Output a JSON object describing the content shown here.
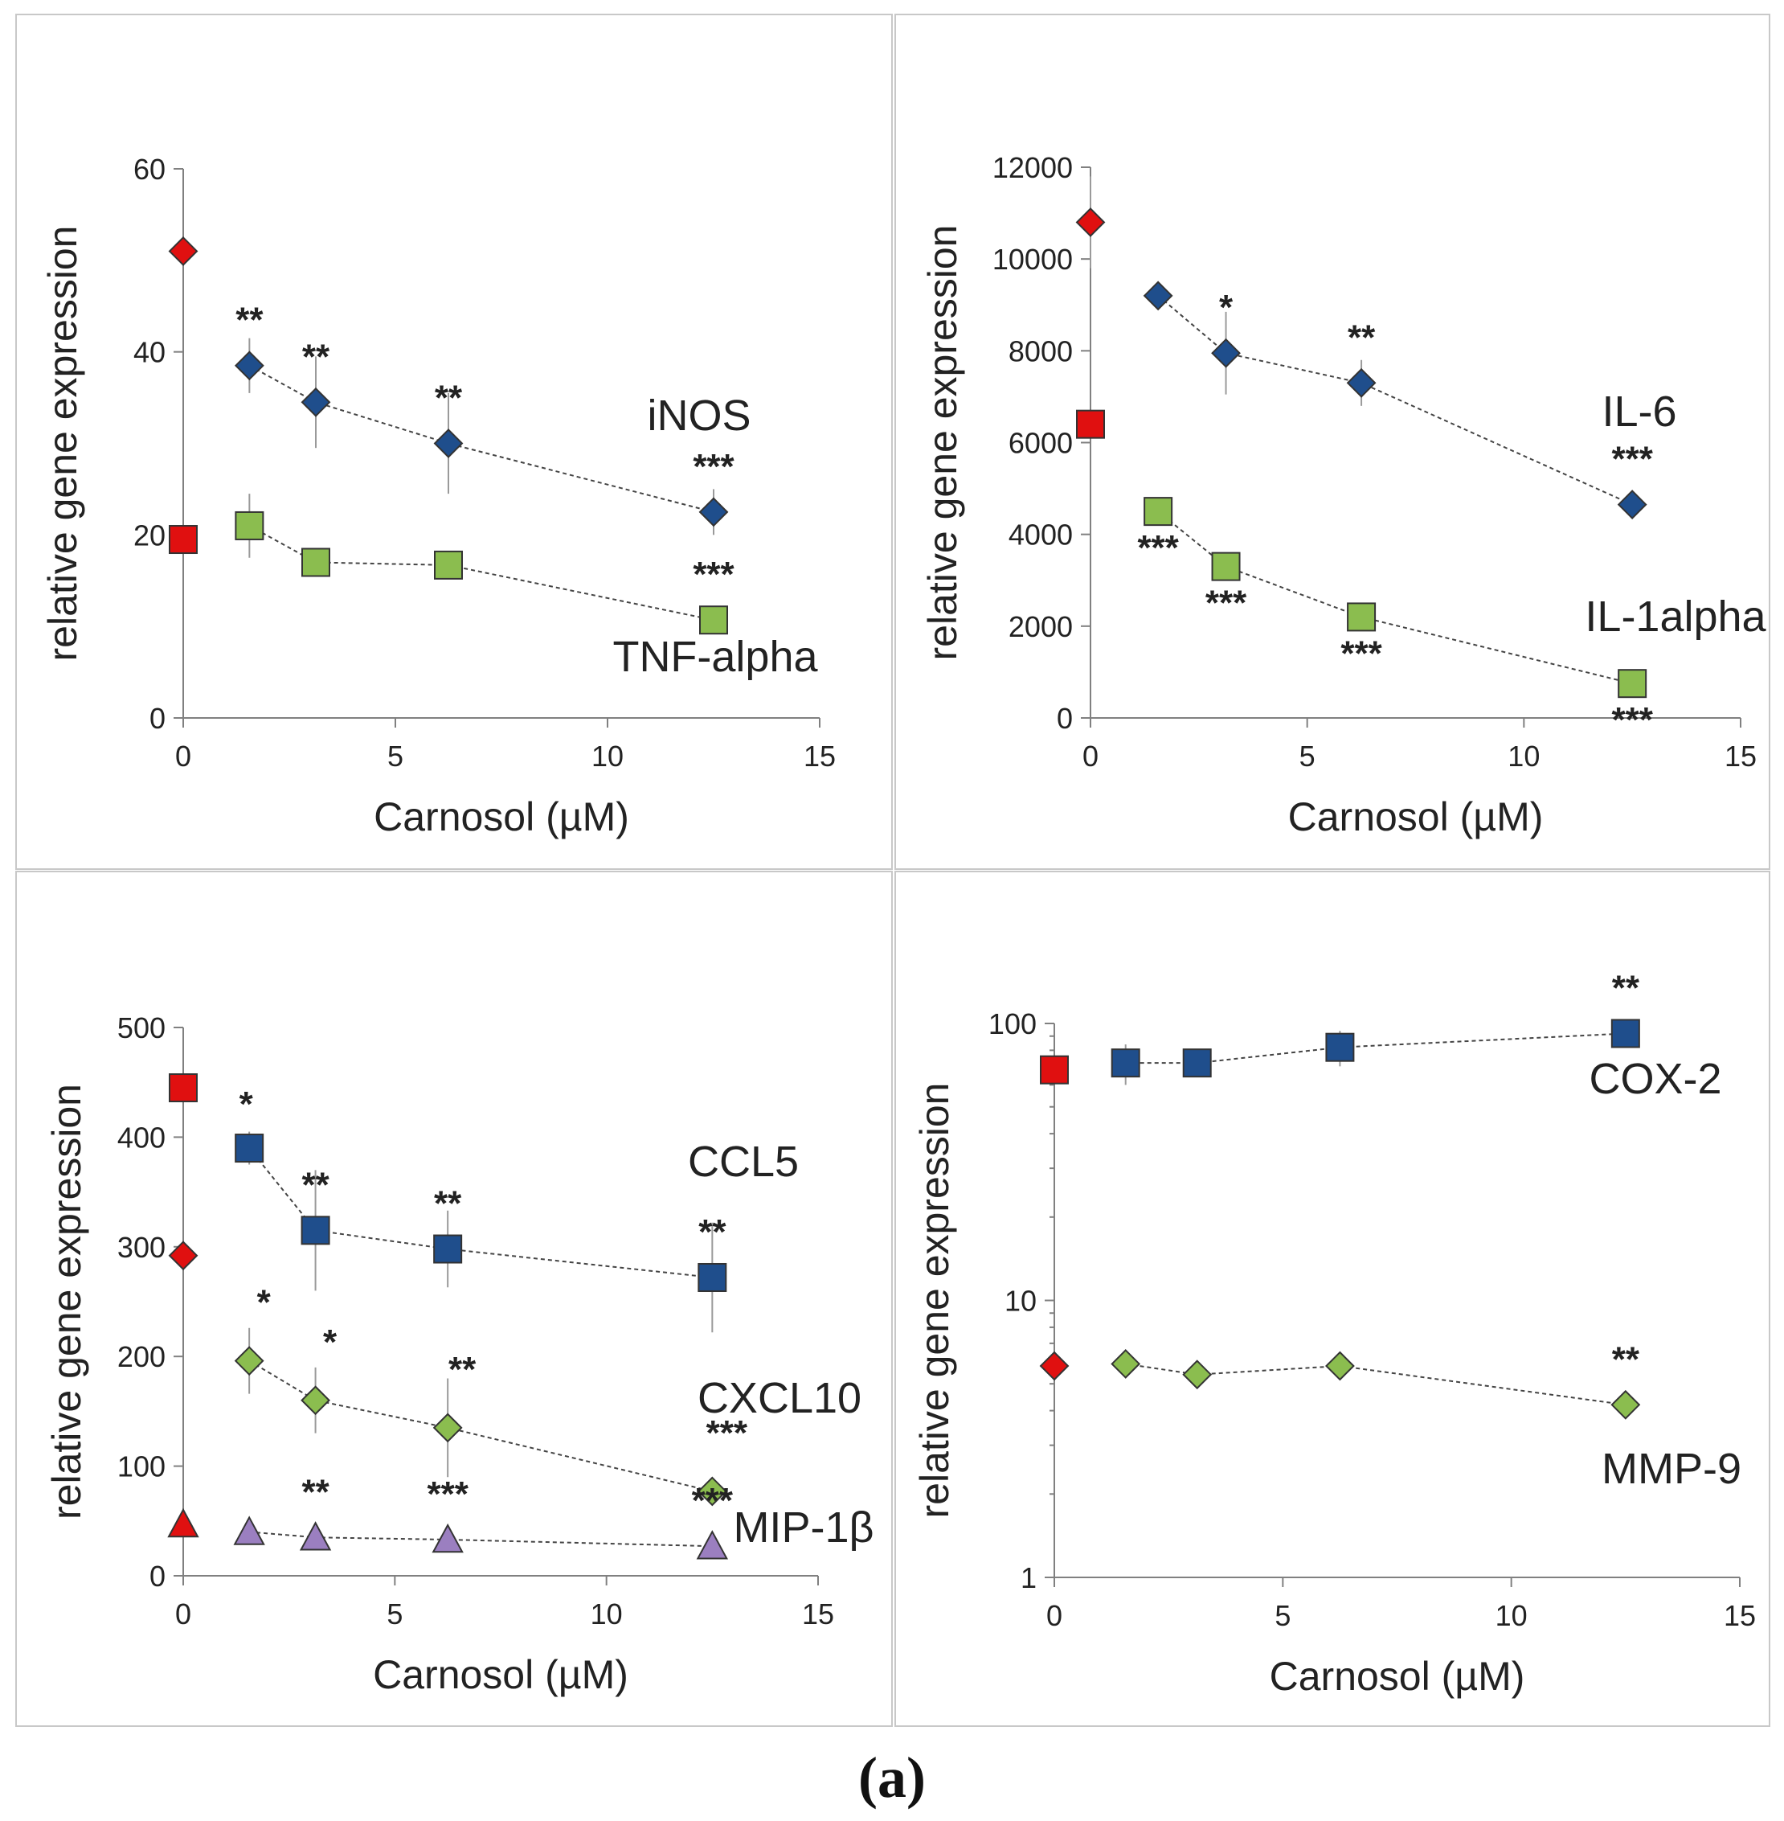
{
  "caption": "(a)",
  "colors": {
    "blue": "#1f4e8c",
    "green": "#8bbd4f",
    "red": "#e01010",
    "purple": "#9b7fc0"
  },
  "chart_data": [
    {
      "id": "panel-inos-tnf",
      "type": "scatter",
      "scale": "linear",
      "xlim": [
        0,
        15
      ],
      "xticks": [
        0,
        5,
        10,
        15
      ],
      "ylim": [
        0,
        60
      ],
      "yticks": [
        0,
        20,
        40,
        60
      ],
      "xlabel": "Carnosol (µM)",
      "ylabel": "relative gene expression",
      "series": [
        {
          "name": "iNOS",
          "color": "blue",
          "marker": "diamond",
          "control": {
            "x": 0,
            "y": 51,
            "err": 0,
            "color": "red"
          },
          "x": [
            1.56,
            3.125,
            6.25,
            12.5
          ],
          "values": [
            38.5,
            34.5,
            30,
            22.5
          ],
          "errors": [
            3,
            5,
            5.5,
            2.5
          ],
          "sig": [
            "**",
            "**",
            "**",
            "***"
          ]
        },
        {
          "name": "TNF-alpha",
          "color": "green",
          "marker": "square",
          "control": {
            "x": 0,
            "y": 19.5,
            "err": 0,
            "color": "red"
          },
          "x": [
            1.56,
            3.125,
            6.25,
            12.5
          ],
          "values": [
            21,
            17,
            16.7,
            10.7
          ],
          "errors": [
            3.5,
            0,
            0,
            0
          ],
          "sig": [
            "",
            "",
            "",
            "***"
          ]
        }
      ]
    },
    {
      "id": "panel-il6-il1a",
      "type": "scatter",
      "scale": "linear",
      "xlim": [
        0,
        15
      ],
      "xticks": [
        0,
        5,
        10,
        15
      ],
      "ylim": [
        0,
        12000
      ],
      "yticks": [
        0,
        2000,
        4000,
        6000,
        8000,
        10000,
        12000
      ],
      "xlabel": "Carnosol (µM)",
      "ylabel": "relative gene expression",
      "series": [
        {
          "name": "IL-6",
          "color": "blue",
          "marker": "diamond",
          "control": {
            "x": 0,
            "y": 10800,
            "err": 1000,
            "color": "red"
          },
          "x": [
            1.56,
            3.125,
            6.25,
            12.5
          ],
          "values": [
            9200,
            7950,
            7300,
            4650
          ],
          "errors": [
            0,
            900,
            500,
            0
          ],
          "sig": [
            "",
            "*",
            "**",
            "***"
          ]
        },
        {
          "name": "IL-1alpha",
          "color": "green",
          "marker": "square",
          "control": {
            "x": 0,
            "y": 6400,
            "err": 0,
            "color": "red"
          },
          "x": [
            1.56,
            3.125,
            6.25,
            12.5
          ],
          "values": [
            4500,
            3300,
            2200,
            750
          ],
          "errors": [
            0,
            300,
            0,
            0
          ],
          "sig": [
            "***",
            "***",
            "***",
            "***"
          ]
        }
      ]
    },
    {
      "id": "panel-ccl5-cxcl10-mip",
      "type": "scatter",
      "scale": "linear",
      "xlim": [
        0,
        15
      ],
      "xticks": [
        0,
        5,
        10,
        15
      ],
      "ylim": [
        0,
        500
      ],
      "yticks": [
        0,
        100,
        200,
        300,
        400,
        500
      ],
      "xlabel": "Carnosol (µM)",
      "ylabel": "relative gene expression",
      "series": [
        {
          "name": "CCL5",
          "color": "blue",
          "marker": "square",
          "control": {
            "x": 0,
            "y": 445,
            "err": 0,
            "color": "red"
          },
          "x": [
            1.56,
            3.125,
            6.25,
            12.5
          ],
          "values": [
            390,
            315,
            298,
            272
          ],
          "errors": [
            15,
            55,
            35,
            50
          ],
          "sig": [
            "*",
            "**",
            "**",
            "**"
          ]
        },
        {
          "name": "CXCL10",
          "color": "green",
          "marker": "diamond",
          "control": {
            "x": 0,
            "y": 292,
            "err": 0,
            "color": "red"
          },
          "x": [
            1.56,
            3.125,
            6.25,
            12.5
          ],
          "values": [
            196,
            160,
            135,
            77
          ],
          "errors": [
            30,
            30,
            45,
            0
          ],
          "sig": [
            "*",
            "*",
            "**",
            "***"
          ]
        },
        {
          "name": "MIP-1β",
          "color": "purple",
          "marker": "triangle",
          "control": {
            "x": 0,
            "y": 47,
            "err": 0,
            "color": "red"
          },
          "x": [
            1.56,
            3.125,
            6.25,
            12.5
          ],
          "values": [
            40,
            35,
            33,
            27
          ],
          "errors": [
            0,
            0,
            0,
            0
          ],
          "sig": [
            "",
            "**",
            "***",
            "***"
          ]
        }
      ]
    },
    {
      "id": "panel-cox2-mmp9",
      "type": "scatter",
      "scale": "log",
      "xlim": [
        0,
        15
      ],
      "xticks": [
        0,
        5,
        10,
        15
      ],
      "ylim": [
        1,
        100
      ],
      "yticks": [
        1,
        10,
        100
      ],
      "xlabel": "Carnosol (µM)",
      "ylabel": "relative gene expression",
      "series": [
        {
          "name": "COX-2",
          "color": "blue",
          "marker": "square",
          "control": {
            "x": 0,
            "y": 68,
            "err": 0,
            "color": "red"
          },
          "x": [
            1.56,
            3.125,
            6.25,
            12.5
          ],
          "values": [
            72,
            72,
            82,
            92
          ],
          "errors": [
            12,
            0,
            12,
            0
          ],
          "sig": [
            "",
            "",
            "",
            "**"
          ]
        },
        {
          "name": "MMP-9",
          "color": "green",
          "marker": "diamond",
          "control": {
            "x": 0,
            "y": 5.8,
            "err": 0,
            "color": "red"
          },
          "x": [
            1.56,
            3.125,
            6.25,
            12.5
          ],
          "values": [
            5.9,
            5.4,
            5.8,
            4.2
          ],
          "errors": [
            0,
            0,
            0,
            0
          ],
          "sig": [
            "",
            "",
            "",
            "**"
          ]
        }
      ]
    }
  ]
}
